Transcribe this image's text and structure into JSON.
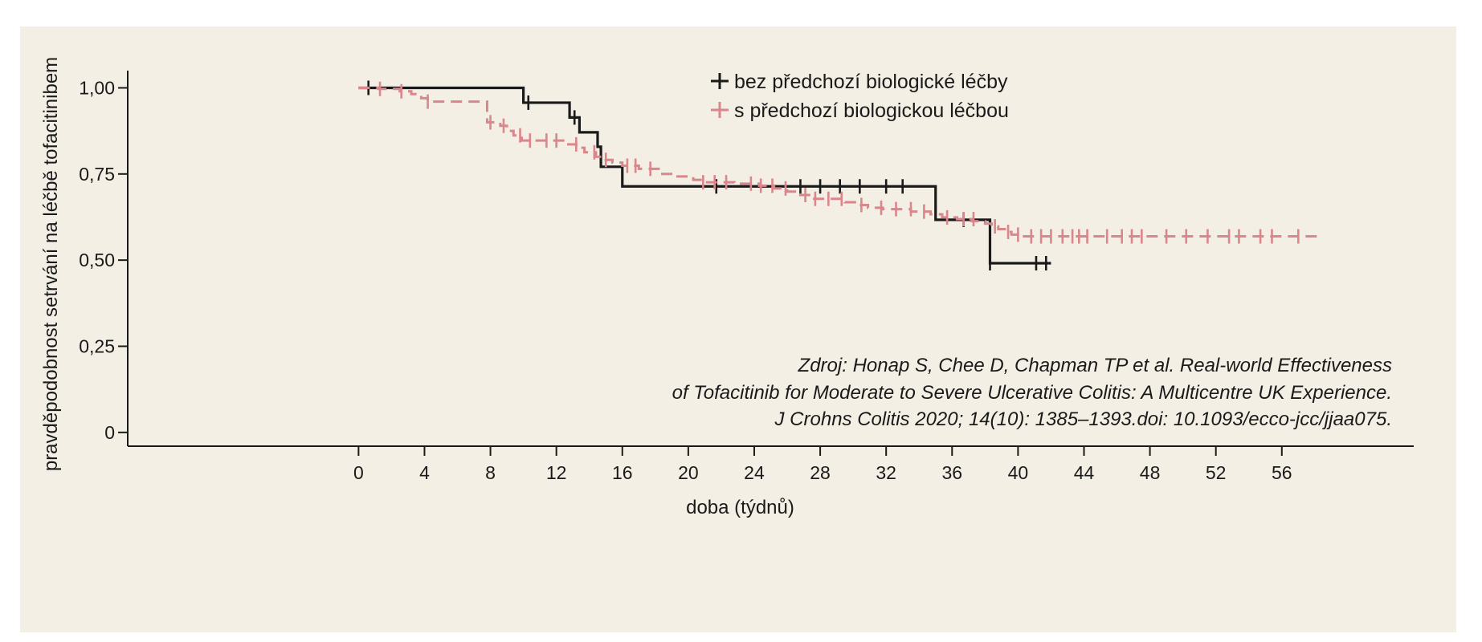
{
  "chart_data": {
    "type": "line",
    "subtype": "kaplan-meier",
    "xlabel": "doba (týdnů)",
    "ylabel": "pravděpodobnost setrvání na léčbě tofacitinibem",
    "xlim": [
      -14,
      64
    ],
    "ylim": [
      -0.04,
      1.05
    ],
    "xticks": [
      0,
      4,
      8,
      12,
      16,
      20,
      24,
      28,
      32,
      36,
      40,
      44,
      48,
      52,
      56
    ],
    "xtick_labels": [
      "0",
      "4",
      "8",
      "12",
      "16",
      "20",
      "24",
      "28",
      "32",
      "36",
      "40",
      "44",
      "48",
      "52",
      "56"
    ],
    "yticks": [
      0,
      0.25,
      0.5,
      0.75,
      1.0
    ],
    "ytick_labels": [
      "0",
      "0,25",
      "0,50",
      "0,75",
      "1,00"
    ],
    "grid": false,
    "legend_position": "top-right",
    "series": [
      {
        "name": "bez předchozí biologické léčby",
        "color": "#1a1a1a",
        "style": "solid",
        "steps": [
          [
            0,
            1.0
          ],
          [
            10.0,
            0.957
          ],
          [
            12.8,
            0.914
          ],
          [
            13.4,
            0.871
          ],
          [
            14.5,
            0.829
          ],
          [
            14.7,
            0.771
          ],
          [
            16.0,
            0.714
          ],
          [
            35.0,
            0.617
          ],
          [
            38.3,
            0.491
          ],
          [
            42.0,
            0.491
          ]
        ],
        "censored": [
          [
            0.6,
            1.0
          ],
          [
            10.3,
            0.957
          ],
          [
            13.1,
            0.914
          ],
          [
            21.7,
            0.714
          ],
          [
            26.8,
            0.714
          ],
          [
            28.0,
            0.714
          ],
          [
            29.2,
            0.714
          ],
          [
            30.4,
            0.714
          ],
          [
            32.0,
            0.714
          ],
          [
            33.0,
            0.714
          ],
          [
            36.7,
            0.617
          ],
          [
            38.3,
            0.491
          ],
          [
            41.1,
            0.491
          ],
          [
            41.7,
            0.491
          ]
        ]
      },
      {
        "name": "s předchozí biologickou léčbou",
        "color": "#d9868c",
        "style": "dashed",
        "steps": [
          [
            0,
            1.0
          ],
          [
            1.2,
            0.997
          ],
          [
            2.5,
            0.99
          ],
          [
            3.2,
            0.982
          ],
          [
            3.8,
            0.97
          ],
          [
            4.2,
            0.96
          ],
          [
            7.8,
            0.9
          ],
          [
            8.6,
            0.89
          ],
          [
            9.0,
            0.875
          ],
          [
            9.4,
            0.862
          ],
          [
            9.9,
            0.847
          ],
          [
            12.6,
            0.836
          ],
          [
            13.2,
            0.826
          ],
          [
            13.7,
            0.813
          ],
          [
            14.4,
            0.8
          ],
          [
            14.8,
            0.791
          ],
          [
            15.4,
            0.783
          ],
          [
            16.0,
            0.774
          ],
          [
            17.0,
            0.765
          ],
          [
            18.3,
            0.75
          ],
          [
            19.2,
            0.743
          ],
          [
            20.3,
            0.733
          ],
          [
            20.9,
            0.726
          ],
          [
            22.8,
            0.722
          ],
          [
            24.3,
            0.716
          ],
          [
            25.2,
            0.708
          ],
          [
            26.0,
            0.699
          ],
          [
            26.8,
            0.689
          ],
          [
            27.5,
            0.678
          ],
          [
            29.5,
            0.668
          ],
          [
            30.2,
            0.66
          ],
          [
            30.9,
            0.652
          ],
          [
            31.8,
            0.648
          ],
          [
            33.5,
            0.641
          ],
          [
            34.7,
            0.633
          ],
          [
            35.4,
            0.624
          ],
          [
            36.3,
            0.619
          ],
          [
            37.2,
            0.613
          ],
          [
            38.0,
            0.606
          ],
          [
            38.4,
            0.598
          ],
          [
            38.8,
            0.59
          ],
          [
            39.2,
            0.582
          ],
          [
            39.6,
            0.574
          ],
          [
            40.0,
            0.569
          ],
          [
            58.5,
            0.569
          ]
        ],
        "censored": [
          [
            1.3,
            0.997
          ],
          [
            2.6,
            0.99
          ],
          [
            4.2,
            0.96
          ],
          [
            8.0,
            0.9
          ],
          [
            8.8,
            0.89
          ],
          [
            9.8,
            0.862
          ],
          [
            10.4,
            0.847
          ],
          [
            11.4,
            0.847
          ],
          [
            12.0,
            0.847
          ],
          [
            13.2,
            0.836
          ],
          [
            14.3,
            0.813
          ],
          [
            15.0,
            0.791
          ],
          [
            16.3,
            0.774
          ],
          [
            16.8,
            0.774
          ],
          [
            17.7,
            0.765
          ],
          [
            20.9,
            0.726
          ],
          [
            21.6,
            0.726
          ],
          [
            22.3,
            0.726
          ],
          [
            23.8,
            0.722
          ],
          [
            24.4,
            0.716
          ],
          [
            25.1,
            0.716
          ],
          [
            25.9,
            0.708
          ],
          [
            27.1,
            0.689
          ],
          [
            27.7,
            0.678
          ],
          [
            28.5,
            0.678
          ],
          [
            29.3,
            0.678
          ],
          [
            30.5,
            0.66
          ],
          [
            31.7,
            0.652
          ],
          [
            32.6,
            0.648
          ],
          [
            33.5,
            0.648
          ],
          [
            34.3,
            0.641
          ],
          [
            35.7,
            0.624
          ],
          [
            36.7,
            0.619
          ],
          [
            37.3,
            0.619
          ],
          [
            38.6,
            0.598
          ],
          [
            39.4,
            0.582
          ],
          [
            40.0,
            0.574
          ],
          [
            40.8,
            0.569
          ],
          [
            41.4,
            0.569
          ],
          [
            42.0,
            0.569
          ],
          [
            42.7,
            0.569
          ],
          [
            43.3,
            0.569
          ],
          [
            43.7,
            0.569
          ],
          [
            44.2,
            0.569
          ],
          [
            45.4,
            0.569
          ],
          [
            46.3,
            0.569
          ],
          [
            46.9,
            0.569
          ],
          [
            47.5,
            0.569
          ],
          [
            49.0,
            0.569
          ],
          [
            50.2,
            0.569
          ],
          [
            51.5,
            0.569
          ],
          [
            52.8,
            0.569
          ],
          [
            53.4,
            0.569
          ],
          [
            54.7,
            0.569
          ],
          [
            55.4,
            0.569
          ],
          [
            57.0,
            0.569
          ]
        ]
      }
    ],
    "annotation": [
      "Zdroj: Honap S, Chee D, Chapman TP et al. Real-world Effectiveness",
      "of Tofacitinib for Moderate to Severe Ulcerative Colitis: A Multicentre UK Experience.",
      "J Crohns Colitis 2020; 14(10): 1385–1393.doi:  10.1093/ecco-jcc/jjaa075."
    ]
  }
}
